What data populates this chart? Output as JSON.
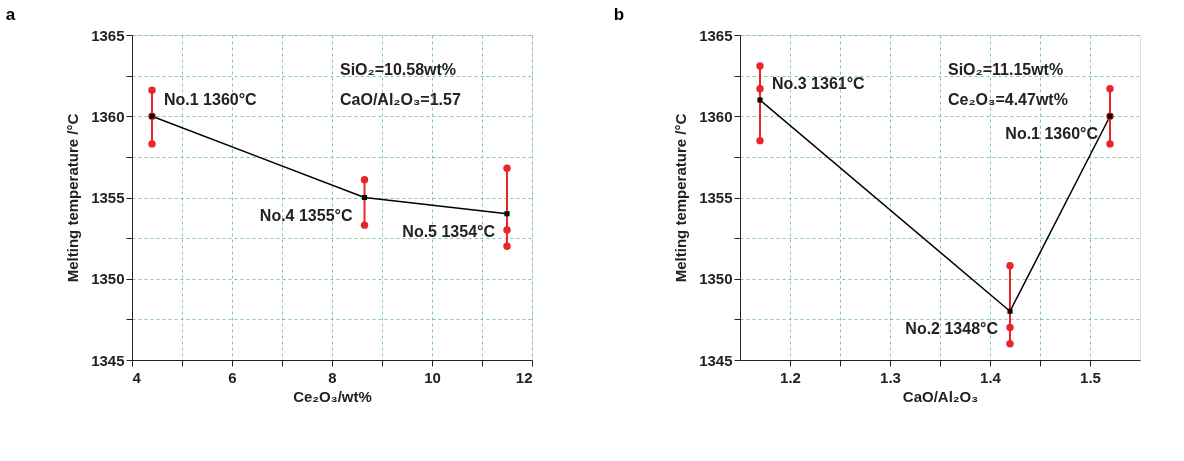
{
  "chart_data": [
    {
      "type": "line",
      "title": "a",
      "xlabel": "Ce₂O₃/wt%",
      "ylabel": "Melting temperature /°C",
      "x": [
        4.4,
        8.65,
        11.5
      ],
      "series": [
        {
          "type": "line",
          "color": "#000000",
          "marker": "square",
          "values": [
            1360,
            1355,
            1354
          ],
          "errors": [
            [
              1358.3,
              1361.6
            ],
            [
              1353.3,
              1356.1
            ],
            [
              1352,
              1356.8
            ]
          ]
        },
        {
          "type": "scatter",
          "color": "#e8262a",
          "marker": "circle",
          "x": [
            4.4,
            4.4,
            4.4,
            8.65,
            8.65,
            11.5,
            11.5,
            11.5
          ],
          "values": [
            1361.6,
            1360,
            1358.3,
            1356.1,
            1353.3,
            1356.8,
            1353,
            1352
          ]
        }
      ],
      "xlim": [
        4,
        12
      ],
      "xticks": [
        4,
        {
          "value": 5,
          "label": null
        },
        6,
        {
          "value": 7,
          "label": null
        },
        8,
        {
          "value": 9,
          "label": null
        },
        10,
        {
          "value": 11,
          "label": null
        },
        12
      ],
      "ylim": [
        1345,
        1365
      ],
      "yticks": [
        1345,
        {
          "value": 1347.5,
          "label": null
        },
        1350,
        {
          "value": 1352.5,
          "label": null
        },
        1355,
        {
          "value": 1357.5,
          "label": null
        },
        1360,
        {
          "value": 1362.5,
          "label": null
        },
        1365
      ],
      "grid": true,
      "annotations": [
        "SiO₂=10.58wt%",
        "CaO/Al₂O₃=1.57",
        {
          "text": "No.1 1360°C",
          "x": 4.4,
          "y": 1360
        },
        {
          "text": "No.4 1355°C",
          "x": 8.65,
          "y": 1355
        },
        {
          "text": "No.5 1354°C",
          "x": 11.5,
          "y": 1354
        }
      ]
    },
    {
      "type": "line",
      "title": "b",
      "xlabel": "CaO/Al₂O₃",
      "ylabel": "Melting temperature /°C",
      "x": [
        1.17,
        1.42,
        1.52
      ],
      "series": [
        {
          "type": "line",
          "color": "#000000",
          "marker": "square",
          "values": [
            1361,
            1348,
            1360
          ],
          "errors": [
            [
              1358.5,
              1363.1
            ],
            [
              1346,
              1350.8
            ],
            [
              1358.3,
              1361.7
            ]
          ]
        },
        {
          "type": "scatter",
          "color": "#e8262a",
          "marker": "circle",
          "x": [
            1.17,
            1.17,
            1.17,
            1.42,
            1.42,
            1.42,
            1.52,
            1.52,
            1.52
          ],
          "values": [
            1363.1,
            1361.7,
            1358.5,
            1350.8,
            1347,
            1346,
            1361.7,
            1360,
            1358.3
          ]
        }
      ],
      "xlim": [
        1.15,
        1.55
      ],
      "xticks": [
        1.2,
        {
          "value": 1.25,
          "label": null
        },
        1.3,
        {
          "value": 1.35,
          "label": null
        },
        1.4,
        {
          "value": 1.45,
          "label": null
        },
        1.5
      ],
      "ylim": [
        1345,
        1365
      ],
      "yticks": [
        1345,
        {
          "value": 1347.5,
          "label": null
        },
        1350,
        {
          "value": 1352.5,
          "label": null
        },
        1355,
        {
          "value": 1357.5,
          "label": null
        },
        1360,
        {
          "value": 1362.5,
          "label": null
        },
        1365
      ],
      "grid": true,
      "annotations": [
        "SiO₂=11.15wt%",
        "Ce₂O₃=4.47wt%",
        {
          "text": "No.3 1361°C",
          "x": 1.17,
          "y": 1361
        },
        {
          "text": "No.1 1360°C",
          "x": 1.52,
          "y": 1360
        },
        {
          "text": "No.2 1348°C",
          "x": 1.42,
          "y": 1348
        }
      ]
    }
  ]
}
